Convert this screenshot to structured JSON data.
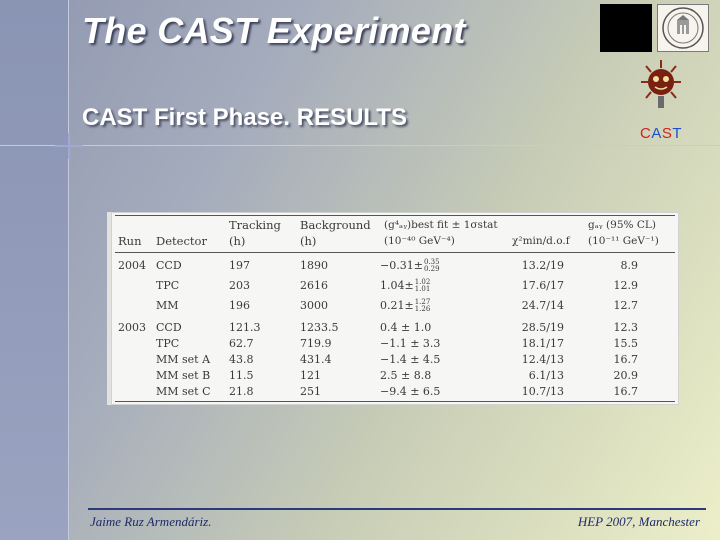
{
  "slide": {
    "title": "The CAST Experiment",
    "subtitle": "CAST First Phase. RESULTS"
  },
  "logos": {
    "cast_label_letters": [
      "C",
      "A",
      "S",
      "T"
    ],
    "colors": {
      "cast_red": "#d42020",
      "cast_blue": "#1e4fc8"
    }
  },
  "table": {
    "headers": {
      "run": "Run",
      "detector": "Detector",
      "tracking_top": "Tracking",
      "tracking_bottom": "(h)",
      "background_top": "Background",
      "background_bottom": "(h)",
      "fit_top": "(g⁴ₐᵧ)best fit ± 1σstat",
      "fit_bottom": "(10⁻⁴⁰ GeV⁻⁴)",
      "chi": "χ²min/d.o.f",
      "g_top": "gₐᵧ (95% CL)",
      "g_bottom": "(10⁻¹¹ GeV⁻¹)"
    },
    "rows": [
      {
        "run": "2004",
        "detector": "CCD",
        "tracking": "197",
        "background": "1890",
        "fit_main": "−0.31",
        "fit_up": "0.35",
        "fit_dn": "0.29",
        "chi": "13.2/19",
        "g": "8.9"
      },
      {
        "run": "",
        "detector": "TPC",
        "tracking": "203",
        "background": "2616",
        "fit_main": "1.04",
        "fit_up": "1.02",
        "fit_dn": "1.01",
        "chi": "17.6/17",
        "g": "12.9"
      },
      {
        "run": "",
        "detector": "MM",
        "tracking": "196",
        "background": "3000",
        "fit_main": "0.21",
        "fit_up": "1.27",
        "fit_dn": "1.26",
        "chi": "24.7/14",
        "g": "12.7"
      },
      {
        "run": "2003",
        "detector": "CCD",
        "tracking": "121.3",
        "background": "1233.5",
        "fit": "0.4 ± 1.0",
        "chi": "28.5/19",
        "g": "12.3"
      },
      {
        "run": "",
        "detector": "TPC",
        "tracking": "62.7",
        "background": "719.9",
        "fit": "−1.1 ± 3.3",
        "chi": "18.1/17",
        "g": "15.5"
      },
      {
        "run": "",
        "detector": "MM set A",
        "tracking": "43.8",
        "background": "431.4",
        "fit": "−1.4 ± 4.5",
        "chi": "12.4/13",
        "g": "16.7"
      },
      {
        "run": "",
        "detector": "MM set B",
        "tracking": "11.5",
        "background": "121",
        "fit": "2.5 ± 8.8",
        "chi": "6.1/13",
        "g": "20.9"
      },
      {
        "run": "",
        "detector": "MM set C",
        "tracking": "21.8",
        "background": "251",
        "fit": "−9.4 ± 6.5",
        "chi": "10.7/13",
        "g": "16.7"
      }
    ]
  },
  "footer": {
    "left": "Jaime Ruz Armendáriz.",
    "right": "HEP 2007, Manchester"
  }
}
